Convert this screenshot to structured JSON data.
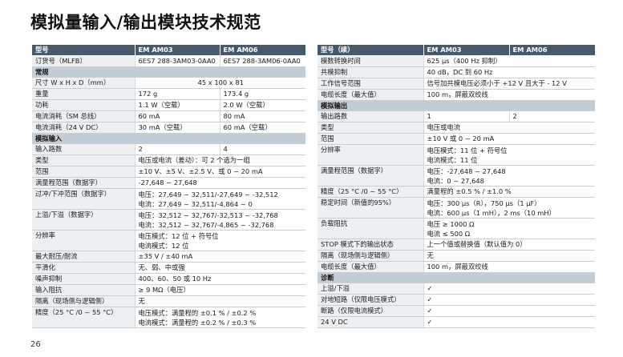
{
  "title": "模拟量输入/输出模块技术规范",
  "page_number": "26",
  "left_table": {
    "header": [
      "型号",
      "EM AM03",
      "EM AM06"
    ],
    "rows": [
      {
        "type": "row",
        "label": "订货号（MLFB）",
        "c2": "6ES7 288-3AM03-0AA0",
        "c3": "6ES7 288-3AM06-0AA0"
      },
      {
        "type": "section",
        "label": "常规"
      },
      {
        "type": "row",
        "label": "尺寸 W x H x D（mm）",
        "span": "45 x 100 x 81"
      },
      {
        "type": "row",
        "label": "重量",
        "c2": "172 g",
        "c3": "173.4 g"
      },
      {
        "type": "row",
        "label": "功耗",
        "c2": "1.1 W（空载）",
        "c3": "2.0 W（空载）"
      },
      {
        "type": "row",
        "label": "电流消耗（SM 总线）",
        "c2": "60 mA",
        "c3": "80 mA"
      },
      {
        "type": "row",
        "label": "电流消耗（24 V DC）",
        "c2": "30 mA（空载）",
        "c3": "60 mA（空载）"
      },
      {
        "type": "section",
        "label": "模拟输入"
      },
      {
        "type": "row",
        "label": "输入路数",
        "c2": "2",
        "c3": "4"
      },
      {
        "type": "row",
        "label": "类型",
        "span": "电压或电流（差动）：可 2 个选为一组"
      },
      {
        "type": "row",
        "label": "范围",
        "span": "±10 V、±5 V、±2.5 V、或 0 ~ 20 mA"
      },
      {
        "type": "row",
        "label": "满量程范围（数据字）",
        "span": "-27,648 ~ 27,648"
      },
      {
        "type": "row",
        "label": "过冲/下冲范围（数据字）",
        "lines": [
          "电压：27,649 ~ 32,511/-27,649 ~ -32,512",
          "电流：27,649 ~ 32,511/-4,864 ~ 0"
        ]
      },
      {
        "type": "row",
        "label": "上溢/下溢（数据字）",
        "lines": [
          "电压：32,512 ~ 32,767/-32,513 ~ -32,768",
          "电流：32,512 ~ 32,767/-4,865 ~ -32,768"
        ]
      },
      {
        "type": "row",
        "label": "分辨率",
        "lines": [
          "电压模式：12 位 + 符号位",
          "电流模式：12 位"
        ]
      },
      {
        "type": "row",
        "label": "最大耐压/耐流",
        "span": "±35 V / ±40 mA"
      },
      {
        "type": "row",
        "label": "平滑化",
        "span": "无、弱、中或强"
      },
      {
        "type": "row",
        "label": "噪声抑制",
        "span": "400、60、50 或 10 Hz"
      },
      {
        "type": "row",
        "label": "输入阻抗",
        "span": "≥ 9 MΩ（电压）"
      },
      {
        "type": "row",
        "label": "隔离（现场侧与逻辑侧）",
        "span": "无"
      },
      {
        "type": "row",
        "label": "精度（25 °C /0 ~ 55 °C）",
        "lines": [
          "电压模式：满量程的 ±0.1 % / ±0.2 %",
          "电流模式：满量程的 ±0.2 % / ±0.3 %"
        ]
      }
    ]
  },
  "right_table": {
    "header": [
      "型号（续）",
      "EM AM03",
      "EM AM06"
    ],
    "rows": [
      {
        "type": "row",
        "label": "模数转换时间",
        "span": "625 µs（400 Hz 抑制）"
      },
      {
        "type": "row",
        "label": "共模抑制",
        "span": "40 dB，DC 到 60 Hz"
      },
      {
        "type": "row",
        "label": "工作信号范围",
        "span": "信号加共模电压必须小于 +12 V 且大于 - 12 V"
      },
      {
        "type": "row",
        "label": "电缆长度（最大值）",
        "span": "100 m，屏蔽双绞线"
      },
      {
        "type": "section",
        "label": "模拟输出"
      },
      {
        "type": "row",
        "label": "输出路数",
        "c2": "1",
        "c3": "2"
      },
      {
        "type": "row",
        "label": "类型",
        "span": "电压或电流"
      },
      {
        "type": "row",
        "label": "范围",
        "span": "±10 V 或 0 ~ 20 mA"
      },
      {
        "type": "row",
        "label": "分辨率",
        "lines": [
          "电压模式：11 位 + 符号位",
          "电流模式：11 位"
        ]
      },
      {
        "type": "row",
        "label": "满量程范围（数据字）",
        "lines": [
          "电压：-27,648 ~ 27,648",
          "电流：0 ~ 27,648"
        ]
      },
      {
        "type": "row",
        "label": "精度（25 °C /0 ~ 55 °C）",
        "span": "满量程的 ±0.5 % / ±1.0 %"
      },
      {
        "type": "row",
        "label": "稳定时间（新值的95%）",
        "lines": [
          "电压：300 µs（R），750 µs（1 µF）",
          "电流：600 µs（1 mH），2 ms（10 mH）"
        ]
      },
      {
        "type": "row",
        "label": "负载阻抗",
        "lines": [
          "电压 ≥ 1000 Ω",
          "电流 ≤ 500 Ω"
        ]
      },
      {
        "type": "row",
        "label": "STOP 模式下的输出状态",
        "span": "上一个值或替换值（默认值为 0）"
      },
      {
        "type": "row",
        "label": "隔离（现场侧与逻辑侧）",
        "span": "无"
      },
      {
        "type": "row",
        "label": "电缆长度（最大值）",
        "span": "100 m，屏蔽双绞线"
      },
      {
        "type": "section",
        "label": "诊断"
      },
      {
        "type": "row",
        "label": "上溢/下溢",
        "span": "✓"
      },
      {
        "type": "row",
        "label": "对地短路（仅限电压模式）",
        "span": "✓"
      },
      {
        "type": "row",
        "label": "断路（仅限电流模式）",
        "span": "✓"
      },
      {
        "type": "row",
        "label": "24 V DC",
        "span": "✓"
      }
    ]
  }
}
